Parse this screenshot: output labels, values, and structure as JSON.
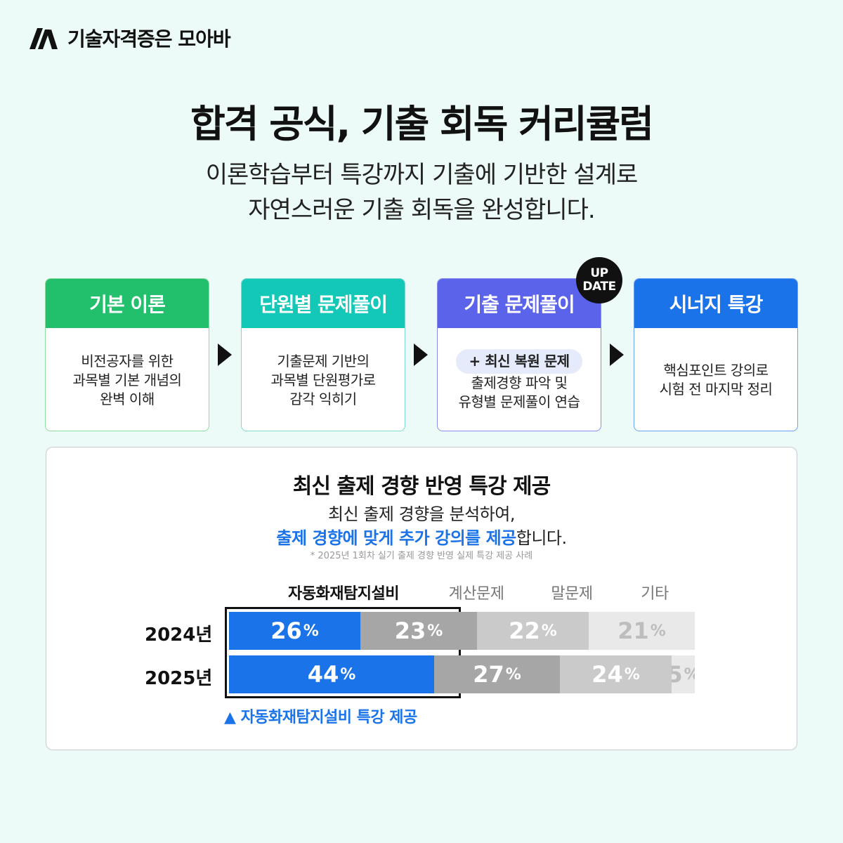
{
  "brand": {
    "name": "기술자격증은 모아바",
    "logo_icon": "moaba-logo-icon"
  },
  "headline": "합격 공식, 기출 회독 커리큘럼",
  "subheadline": [
    "이론학습부터 특강까지 기출에 기반한 설계로",
    "자연스러운 기출 회독을 완성합니다."
  ],
  "steps": [
    {
      "title": "기본 이론",
      "color": "#22c06c",
      "lines": [
        "비전공자를 위한",
        "과목별 기본 개념의",
        "완벽 이해"
      ]
    },
    {
      "title": "단원별 문제풀이",
      "color": "#14c8b8",
      "lines": [
        "기출문제 기반의",
        "과목별 단원평가로",
        "감각 익히기"
      ]
    },
    {
      "title": "기출 문제풀이",
      "color": "#5a63ea",
      "badge": [
        "UP",
        "DATE"
      ],
      "pill": "+ 최신 복원 문제",
      "lines": [
        "출제경향 파악 및",
        "유형별 문제풀이 연습"
      ]
    },
    {
      "title": "시너지 특강",
      "color": "#1a73e8",
      "lines": [
        "핵심포인트 강의로",
        "시험 전 마지막 정리"
      ]
    }
  ],
  "panel": {
    "title": "최신 출제 경향 반영 특강 제공",
    "desc_line1": "최신 출제 경향을 분석하여,",
    "desc_line2_highlight": "출제 경향에 맞게 추가 강의를 제공",
    "desc_line2_rest": "합니다.",
    "note": "* 2025년 1회차 실기 출제 경향 반영 실제 특강 제공 사례",
    "footnote": "▲ 자동화재탐지설비 특강 제공"
  },
  "chart_data": {
    "type": "bar",
    "stacked": true,
    "orientation": "horizontal",
    "categories": [
      "2024년",
      "2025년"
    ],
    "series": [
      {
        "name": "자동화재탐지설비",
        "values": [
          26,
          44
        ],
        "color": "#1a73e8"
      },
      {
        "name": "계산문제",
        "values": [
          23,
          27
        ],
        "color": "#a6a6a6"
      },
      {
        "name": "말문제",
        "values": [
          22,
          24
        ],
        "color": "#cacaca"
      },
      {
        "name": "기타",
        "values": [
          21,
          5
        ],
        "color": "#e9e9e9"
      }
    ],
    "unit": "%",
    "highlight_series": "자동화재탐지설비"
  }
}
